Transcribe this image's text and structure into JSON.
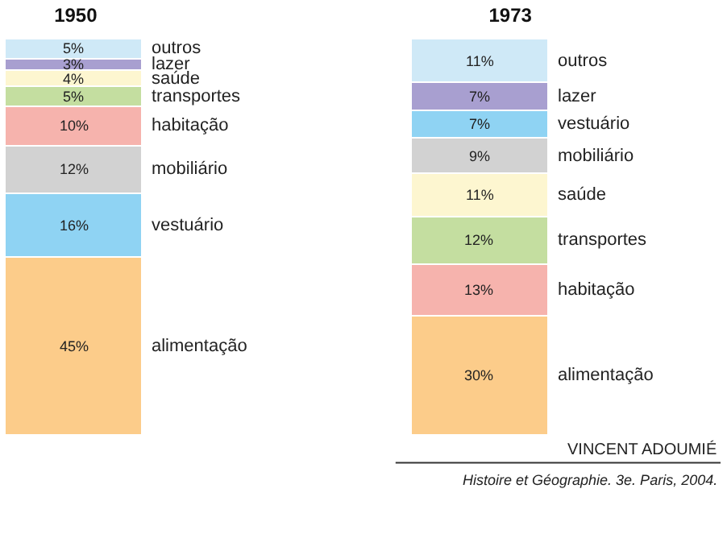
{
  "chart_data": [
    {
      "type": "bar",
      "stacked": true,
      "title": "1950",
      "categories": [
        null
      ],
      "legend": false,
      "series": [
        {
          "name": "alimentação",
          "color": "#fccc8a",
          "values": [
            45
          ],
          "value_labels": [
            "45%"
          ]
        },
        {
          "name": "vestuário",
          "color": "#8fd3f3",
          "values": [
            16
          ],
          "value_labels": [
            "16%"
          ]
        },
        {
          "name": "mobiliário",
          "color": "#d2d2d2",
          "values": [
            12
          ],
          "value_labels": [
            "12%"
          ]
        },
        {
          "name": "habitação",
          "color": "#f6b3ad",
          "values": [
            10
          ],
          "value_labels": [
            "10%"
          ]
        },
        {
          "name": "transportes",
          "color": "#c4dea0",
          "values": [
            5
          ],
          "value_labels": [
            "5%"
          ]
        },
        {
          "name": "saúde",
          "color": "#fdf6d0",
          "values": [
            4
          ],
          "value_labels": [
            "4%"
          ]
        },
        {
          "name": "lazer",
          "color": "#a89fd0",
          "values": [
            3
          ],
          "value_labels": [
            "3%"
          ]
        },
        {
          "name": "outros",
          "color": "#cfe9f7",
          "values": [
            5
          ],
          "value_labels": [
            "5%"
          ]
        }
      ]
    },
    {
      "type": "bar",
      "stacked": true,
      "title": "1973",
      "categories": [
        null
      ],
      "legend": false,
      "series": [
        {
          "name": "alimentação",
          "color": "#fccc8a",
          "values": [
            30
          ],
          "value_labels": [
            "30%"
          ]
        },
        {
          "name": "habitação",
          "color": "#f6b3ad",
          "values": [
            13
          ],
          "value_labels": [
            "13%"
          ]
        },
        {
          "name": "transportes",
          "color": "#c4dea0",
          "values": [
            12
          ],
          "value_labels": [
            "12%"
          ]
        },
        {
          "name": "saúde",
          "color": "#fdf6d0",
          "values": [
            11
          ],
          "value_labels": [
            "11%"
          ]
        },
        {
          "name": "mobiliário",
          "color": "#d2d2d2",
          "values": [
            9
          ],
          "value_labels": [
            "9%"
          ]
        },
        {
          "name": "vestuário",
          "color": "#8fd3f3",
          "values": [
            7
          ],
          "value_labels": [
            "7%"
          ]
        },
        {
          "name": "lazer",
          "color": "#a89fd0",
          "values": [
            7
          ],
          "value_labels": [
            "7%"
          ]
        },
        {
          "name": "outros",
          "color": "#cfe9f7",
          "values": [
            11
          ],
          "value_labels": [
            "11%"
          ]
        }
      ],
      "annotations": [
        "VINCENT ADOUMIÉ",
        "Histoire et Géographie. 3e. Paris, 2004."
      ]
    }
  ]
}
